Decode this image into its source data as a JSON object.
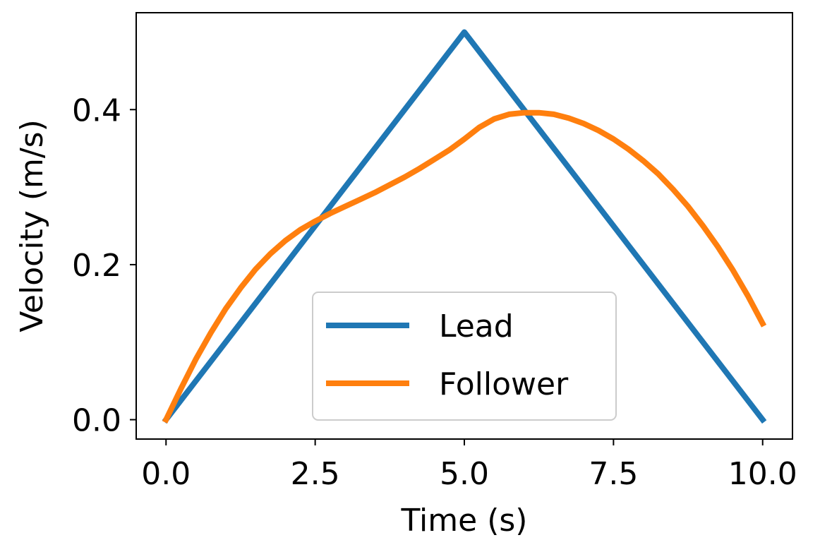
{
  "chart_data": {
    "type": "line",
    "title": "",
    "xlabel": "Time (s)",
    "ylabel": "Velocity (m/s)",
    "xlim": [
      -0.5,
      10.5
    ],
    "ylim": [
      -0.025,
      0.525
    ],
    "xticks": [
      0,
      2.5,
      5,
      7.5,
      10
    ],
    "xtick_labels": [
      "0.0",
      "2.5",
      "5.0",
      "7.5",
      "10.0"
    ],
    "yticks": [
      0,
      0.2,
      0.4
    ],
    "ytick_labels": [
      "0.0",
      "0.2",
      "0.4"
    ],
    "grid": false,
    "legend": "lower center",
    "series": [
      {
        "name": "Lead",
        "color": "#1f77b4",
        "x": [
          0,
          5,
          10
        ],
        "y": [
          0,
          0.5,
          0
        ]
      },
      {
        "name": "Follower",
        "color": "#ff7f0e",
        "x": [
          0,
          0.25,
          0.5,
          0.75,
          1,
          1.25,
          1.5,
          1.75,
          2,
          2.25,
          2.5,
          2.75,
          3,
          3.25,
          3.5,
          3.75,
          4,
          4.25,
          4.5,
          4.75,
          5,
          5.25,
          5.5,
          5.75,
          6,
          6.25,
          6.5,
          6.75,
          7,
          7.25,
          7.5,
          7.75,
          8,
          8.25,
          8.5,
          8.75,
          9,
          9.25,
          9.5,
          9.75,
          10
        ],
        "y": [
          0,
          0.04,
          0.078,
          0.112,
          0.143,
          0.17,
          0.194,
          0.214,
          0.231,
          0.245,
          0.256,
          0.266,
          0.275,
          0.284,
          0.293,
          0.303,
          0.313,
          0.324,
          0.336,
          0.348,
          0.362,
          0.377,
          0.388,
          0.394,
          0.396,
          0.396,
          0.394,
          0.389,
          0.382,
          0.373,
          0.362,
          0.349,
          0.334,
          0.317,
          0.297,
          0.275,
          0.25,
          0.223,
          0.193,
          0.16,
          0.124
        ]
      }
    ]
  }
}
